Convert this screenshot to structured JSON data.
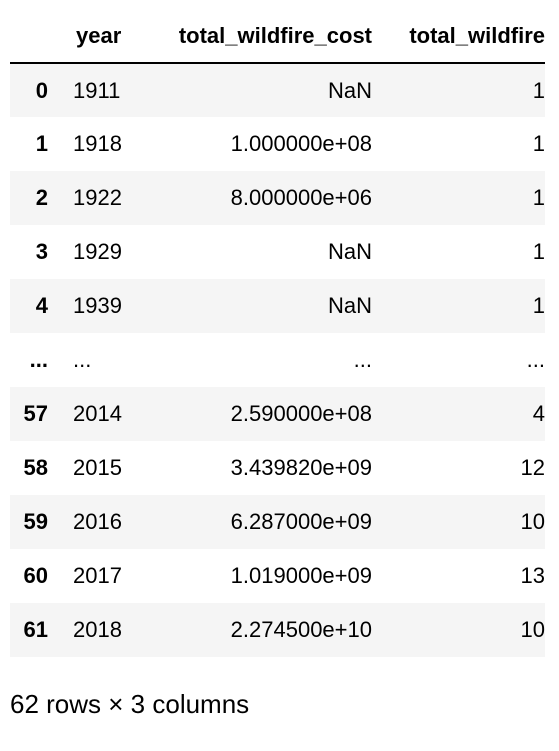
{
  "table": {
    "columns": [
      "year",
      "total_wildfire_cost",
      "total_wildfire"
    ],
    "rows": [
      {
        "index": "0",
        "year": "1911",
        "total_wildfire_cost": "NaN",
        "total_wildfire": "1"
      },
      {
        "index": "1",
        "year": "1918",
        "total_wildfire_cost": "1.000000e+08",
        "total_wildfire": "1"
      },
      {
        "index": "2",
        "year": "1922",
        "total_wildfire_cost": "8.000000e+06",
        "total_wildfire": "1"
      },
      {
        "index": "3",
        "year": "1929",
        "total_wildfire_cost": "NaN",
        "total_wildfire": "1"
      },
      {
        "index": "4",
        "year": "1939",
        "total_wildfire_cost": "NaN",
        "total_wildfire": "1"
      },
      {
        "index": "...",
        "year": "...",
        "total_wildfire_cost": "...",
        "total_wildfire": "..."
      },
      {
        "index": "57",
        "year": "2014",
        "total_wildfire_cost": "2.590000e+08",
        "total_wildfire": "4"
      },
      {
        "index": "58",
        "year": "2015",
        "total_wildfire_cost": "3.439820e+09",
        "total_wildfire": "12"
      },
      {
        "index": "59",
        "year": "2016",
        "total_wildfire_cost": "6.287000e+09",
        "total_wildfire": "10"
      },
      {
        "index": "60",
        "year": "2017",
        "total_wildfire_cost": "1.019000e+09",
        "total_wildfire": "13"
      },
      {
        "index": "61",
        "year": "2018",
        "total_wildfire_cost": "2.274500e+10",
        "total_wildfire": "10"
      }
    ]
  },
  "footer": {
    "shape_text": "62 rows × 3 columns"
  }
}
